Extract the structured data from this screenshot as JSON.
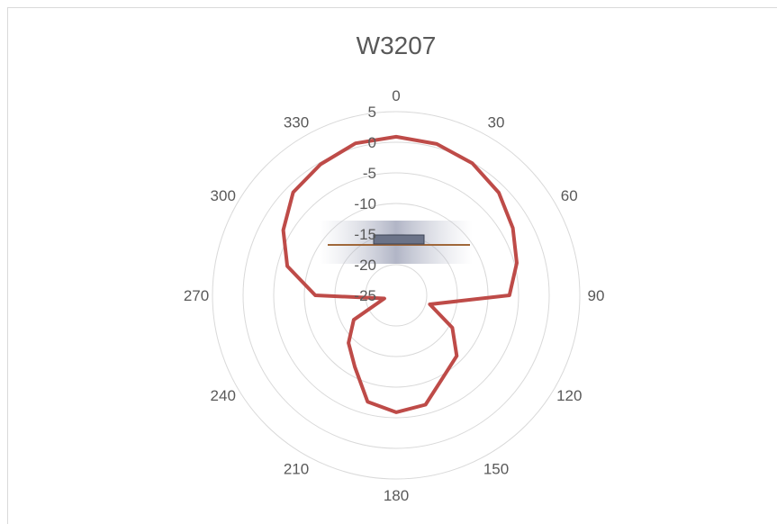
{
  "chart_data": {
    "type": "radar",
    "title": "W3207",
    "categories": [
      "0",
      null,
      "30",
      null,
      "60",
      null,
      "90",
      null,
      "120",
      null,
      "150",
      null,
      "180",
      null,
      "210",
      null,
      "240",
      null,
      "270",
      null,
      "300",
      null,
      "330",
      null
    ],
    "series": [
      {
        "name": "W3207",
        "color": "#be4b48",
        "values": [
          0.9,
          0.6,
          -0.1,
          -1.3,
          -3,
          -4.6,
          -6.5,
          -19.3,
          -14.4,
          -11,
          -9.6,
          -6.5,
          -5.9,
          -7,
          -11.5,
          -14,
          -17,
          -23,
          -11.8,
          -6.6,
          -3.7,
          -1.2,
          -0.3,
          0.7
        ]
      }
    ],
    "ylim": [
      -25,
      5
    ],
    "yticks": [
      -25,
      -20,
      -15,
      -10,
      -5,
      0,
      5
    ],
    "grid": true
  }
}
